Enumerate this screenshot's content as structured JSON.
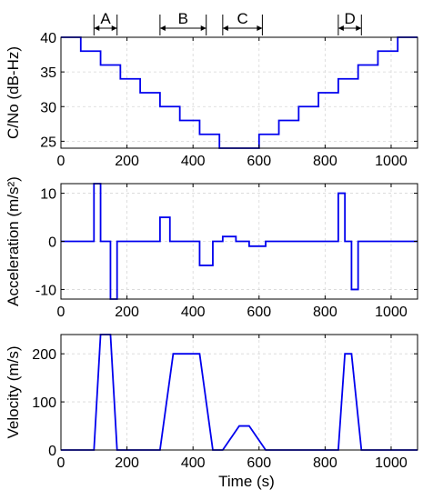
{
  "chart_data": [
    {
      "type": "line",
      "step": true,
      "ylabel": "C/No (dB-Hz)",
      "xlabel": "",
      "xlim": [
        0,
        1080
      ],
      "ylim": [
        24,
        40
      ],
      "xticks": [
        0,
        200,
        400,
        600,
        800,
        1000
      ],
      "yticks": [
        25,
        30,
        35,
        40
      ],
      "grid": true,
      "series": [
        {
          "x": [
            0,
            60,
            60,
            120,
            120,
            180,
            180,
            240,
            240,
            300,
            300,
            360,
            360,
            420,
            420,
            480,
            480,
            600,
            600,
            660,
            660,
            720,
            720,
            780,
            780,
            840,
            840,
            900,
            900,
            960,
            960,
            1020,
            1020,
            1080
          ],
          "y": [
            40,
            40,
            38,
            38,
            36,
            36,
            34,
            34,
            32,
            32,
            30,
            30,
            28,
            28,
            26,
            26,
            24,
            24,
            26,
            26,
            28,
            28,
            30,
            30,
            32,
            32,
            34,
            34,
            36,
            36,
            38,
            38,
            40,
            40
          ]
        }
      ],
      "segments": [
        {
          "label": "A",
          "start": 100,
          "end": 170
        },
        {
          "label": "B",
          "start": 300,
          "end": 440
        },
        {
          "label": "C",
          "start": 490,
          "end": 610
        },
        {
          "label": "D",
          "start": 840,
          "end": 910
        }
      ]
    },
    {
      "type": "line",
      "ylabel": "Acceleration (m/s²)",
      "xlabel": "",
      "xlim": [
        0,
        1080
      ],
      "ylim": [
        -12,
        12
      ],
      "xticks": [
        0,
        200,
        400,
        600,
        800,
        1000
      ],
      "yticks": [
        -10,
        0,
        10
      ],
      "grid": true,
      "series": [
        {
          "x": [
            0,
            100,
            100,
            120,
            120,
            130,
            130,
            150,
            150,
            170,
            170,
            300,
            300,
            330,
            330,
            420,
            420,
            460,
            460,
            490,
            490,
            530,
            530,
            570,
            570,
            620,
            620,
            840,
            840,
            860,
            860,
            880,
            880,
            900,
            900,
            910,
            910,
            1080
          ],
          "y": [
            0,
            0,
            12,
            12,
            0,
            0,
            0,
            0,
            -12,
            -12,
            0,
            0,
            5,
            5,
            0,
            0,
            -5,
            -5,
            0,
            0,
            1,
            1,
            0,
            0,
            -1,
            -1,
            0,
            0,
            10,
            10,
            0,
            0,
            -10,
            -10,
            0,
            0,
            0,
            0
          ]
        }
      ]
    },
    {
      "type": "line",
      "ylabel": "Velocity (m/s)",
      "xlabel": "Time (s)",
      "xlim": [
        0,
        1080
      ],
      "ylim": [
        0,
        240
      ],
      "xticks": [
        0,
        200,
        400,
        600,
        800,
        1000
      ],
      "yticks": [
        0,
        100,
        200
      ],
      "grid": true,
      "series": [
        {
          "x": [
            0,
            100,
            120,
            150,
            170,
            300,
            340,
            420,
            460,
            490,
            540,
            570,
            620,
            840,
            860,
            880,
            910,
            1080
          ],
          "y": [
            0,
            0,
            240,
            240,
            0,
            0,
            200,
            200,
            0,
            0,
            50,
            50,
            0,
            0,
            200,
            200,
            0,
            0
          ]
        }
      ]
    }
  ]
}
